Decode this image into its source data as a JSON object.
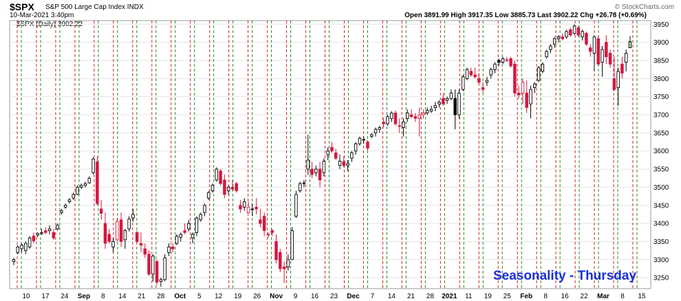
{
  "header": {
    "symbol": "$SPX",
    "description": "S&P 500 Large Cap Index INDX",
    "date": "10-Mar-2021 3:40pm",
    "quote": "Open 3891.99  High 3917.35  Low 3885.73  Last 3902.22  Chg +26.78 (+0.69%)",
    "legend": "$SPX (Daily) 3902.22",
    "brand": "© StockCharts.com"
  },
  "annotation": "Seasonality - Thursday",
  "colors": {
    "up": "#000000",
    "down": "#d6163f",
    "thursday_line": "#d11f1f",
    "week_line": "#1f8a1f",
    "annotation": "#1a32d6"
  },
  "chart_data": {
    "type": "candlestick",
    "ylim": [
      3220,
      3960
    ],
    "y_ticks": [
      3250,
      3300,
      3350,
      3400,
      3450,
      3500,
      3550,
      3600,
      3650,
      3700,
      3750,
      3800,
      3850,
      3900,
      3950
    ],
    "x_ticks": [
      "10",
      "17",
      "24",
      "Sep",
      "8",
      "14",
      "21",
      "28",
      "Oct",
      "5",
      "12",
      "19",
      "26",
      "Nov",
      "9",
      "16",
      "23",
      "Dec",
      "7",
      "14",
      "21",
      "28",
      "2021",
      "11",
      "19",
      "25",
      "Feb",
      "8",
      "16",
      "22",
      "Mar",
      "8",
      "15"
    ],
    "bars": [
      {
        "o": 3295,
        "h": 3305,
        "l": 3285,
        "c": 3300,
        "up": true
      },
      {
        "o": 3320,
        "h": 3340,
        "l": 3315,
        "c": 3335,
        "up": true
      },
      {
        "o": 3330,
        "h": 3345,
        "l": 3320,
        "c": 3340,
        "up": true
      },
      {
        "o": 3325,
        "h": 3350,
        "l": 3315,
        "c": 3345,
        "up": true
      },
      {
        "o": 3335,
        "h": 3365,
        "l": 3330,
        "c": 3360,
        "up": true
      },
      {
        "o": 3365,
        "h": 3375,
        "l": 3345,
        "c": 3352,
        "up": false
      },
      {
        "o": 3368,
        "h": 3375,
        "l": 3362,
        "c": 3372,
        "up": true
      },
      {
        "o": 3372,
        "h": 3385,
        "l": 3368,
        "c": 3375,
        "up": true
      },
      {
        "o": 3380,
        "h": 3390,
        "l": 3370,
        "c": 3375,
        "up": false
      },
      {
        "o": 3380,
        "h": 3395,
        "l": 3370,
        "c": 3385,
        "up": true
      },
      {
        "o": 3375,
        "h": 3385,
        "l": 3355,
        "c": 3360,
        "up": false
      },
      {
        "o": 3385,
        "h": 3400,
        "l": 3380,
        "c": 3395,
        "up": true
      },
      {
        "o": 3430,
        "h": 3440,
        "l": 3425,
        "c": 3435,
        "up": true
      },
      {
        "o": 3445,
        "h": 3455,
        "l": 3440,
        "c": 3450,
        "up": true
      },
      {
        "o": 3460,
        "h": 3470,
        "l": 3455,
        "c": 3465,
        "up": true
      },
      {
        "o": 3470,
        "h": 3485,
        "l": 3465,
        "c": 3480,
        "up": true
      },
      {
        "o": 3480,
        "h": 3505,
        "l": 3478,
        "c": 3500,
        "up": true
      },
      {
        "o": 3500,
        "h": 3510,
        "l": 3495,
        "c": 3505,
        "up": true
      },
      {
        "o": 3505,
        "h": 3515,
        "l": 3500,
        "c": 3510,
        "up": true
      },
      {
        "o": 3512,
        "h": 3530,
        "l": 3510,
        "c": 3525,
        "up": true
      },
      {
        "o": 3540,
        "h": 3582,
        "l": 3535,
        "c": 3578,
        "up": true
      },
      {
        "o": 3570,
        "h": 3585,
        "l": 3450,
        "c": 3455,
        "up": false
      },
      {
        "o": 3440,
        "h": 3465,
        "l": 3410,
        "c": 3428,
        "up": false
      },
      {
        "o": 3400,
        "h": 3430,
        "l": 3330,
        "c": 3345,
        "up": false
      },
      {
        "o": 3370,
        "h": 3385,
        "l": 3345,
        "c": 3350,
        "up": false
      },
      {
        "o": 3335,
        "h": 3360,
        "l": 3320,
        "c": 3350,
        "up": true
      },
      {
        "o": 3355,
        "h": 3415,
        "l": 3350,
        "c": 3405,
        "up": false
      },
      {
        "o": 3410,
        "h": 3430,
        "l": 3335,
        "c": 3350,
        "up": false
      },
      {
        "o": 3355,
        "h": 3385,
        "l": 3330,
        "c": 3380,
        "up": true
      },
      {
        "o": 3385,
        "h": 3420,
        "l": 3378,
        "c": 3412,
        "up": true
      },
      {
        "o": 3415,
        "h": 3440,
        "l": 3405,
        "c": 3425,
        "up": true
      },
      {
        "o": 3375,
        "h": 3380,
        "l": 3345,
        "c": 3350,
        "up": false
      },
      {
        "o": 3345,
        "h": 3375,
        "l": 3320,
        "c": 3340,
        "up": false
      },
      {
        "o": 3330,
        "h": 3345,
        "l": 3305,
        "c": 3315,
        "up": false
      },
      {
        "o": 3315,
        "h": 3325,
        "l": 3255,
        "c": 3260,
        "up": false
      },
      {
        "o": 3260,
        "h": 3315,
        "l": 3240,
        "c": 3310,
        "up": true
      },
      {
        "o": 3295,
        "h": 3300,
        "l": 3230,
        "c": 3238,
        "up": false
      },
      {
        "o": 3240,
        "h": 3250,
        "l": 3225,
        "c": 3245,
        "up": true
      },
      {
        "o": 3245,
        "h": 3315,
        "l": 3240,
        "c": 3305,
        "up": true
      },
      {
        "o": 3320,
        "h": 3345,
        "l": 3310,
        "c": 3335,
        "up": true
      },
      {
        "o": 3335,
        "h": 3345,
        "l": 3320,
        "c": 3330,
        "up": false
      },
      {
        "o": 3345,
        "h": 3370,
        "l": 3340,
        "c": 3365,
        "up": true
      },
      {
        "o": 3362,
        "h": 3375,
        "l": 3350,
        "c": 3370,
        "up": true
      },
      {
        "o": 3380,
        "h": 3400,
        "l": 3370,
        "c": 3375,
        "up": false
      },
      {
        "o": 3385,
        "h": 3410,
        "l": 3378,
        "c": 3400,
        "up": true
      },
      {
        "o": 3360,
        "h": 3375,
        "l": 3345,
        "c": 3370,
        "up": true
      },
      {
        "o": 3375,
        "h": 3420,
        "l": 3365,
        "c": 3415,
        "up": true
      },
      {
        "o": 3410,
        "h": 3430,
        "l": 3405,
        "c": 3425,
        "up": true
      },
      {
        "o": 3430,
        "h": 3455,
        "l": 3420,
        "c": 3450,
        "up": true
      },
      {
        "o": 3470,
        "h": 3490,
        "l": 3465,
        "c": 3485,
        "up": true
      },
      {
        "o": 3490,
        "h": 3510,
        "l": 3485,
        "c": 3505,
        "up": true
      },
      {
        "o": 3520,
        "h": 3555,
        "l": 3515,
        "c": 3550,
        "up": true
      },
      {
        "o": 3545,
        "h": 3550,
        "l": 3505,
        "c": 3510,
        "up": false
      },
      {
        "o": 3520,
        "h": 3535,
        "l": 3470,
        "c": 3480,
        "up": false
      },
      {
        "o": 3490,
        "h": 3505,
        "l": 3480,
        "c": 3500,
        "up": true
      },
      {
        "o": 3500,
        "h": 3520,
        "l": 3490,
        "c": 3495,
        "up": false
      },
      {
        "o": 3510,
        "h": 3515,
        "l": 3485,
        "c": 3490,
        "up": false
      },
      {
        "o": 3450,
        "h": 3465,
        "l": 3430,
        "c": 3440,
        "up": false
      },
      {
        "o": 3445,
        "h": 3470,
        "l": 3435,
        "c": 3460,
        "up": true
      },
      {
        "o": 3430,
        "h": 3460,
        "l": 3430,
        "c": 3445,
        "up": false
      },
      {
        "o": 3440,
        "h": 3455,
        "l": 3420,
        "c": 3440,
        "up": true
      },
      {
        "o": 3445,
        "h": 3470,
        "l": 3425,
        "c": 3440,
        "up": false
      },
      {
        "o": 3410,
        "h": 3440,
        "l": 3390,
        "c": 3400,
        "up": false
      },
      {
        "o": 3420,
        "h": 3430,
        "l": 3365,
        "c": 3380,
        "up": false
      },
      {
        "o": 3370,
        "h": 3375,
        "l": 3360,
        "c": 3368,
        "up": false
      },
      {
        "o": 3380,
        "h": 3385,
        "l": 3365,
        "c": 3375,
        "up": false
      },
      {
        "o": 3350,
        "h": 3370,
        "l": 3290,
        "c": 3300,
        "up": false
      },
      {
        "o": 3320,
        "h": 3330,
        "l": 3265,
        "c": 3275,
        "up": false
      },
      {
        "o": 3280,
        "h": 3295,
        "l": 3235,
        "c": 3275,
        "up": false
      },
      {
        "o": 3280,
        "h": 3315,
        "l": 3270,
        "c": 3300,
        "up": true
      },
      {
        "o": 3300,
        "h": 3390,
        "l": 3300,
        "c": 3380,
        "up": true
      },
      {
        "o": 3420,
        "h": 3490,
        "l": 3415,
        "c": 3480,
        "up": true
      },
      {
        "o": 3490,
        "h": 3515,
        "l": 3485,
        "c": 3510,
        "up": true
      },
      {
        "o": 3510,
        "h": 3520,
        "l": 3500,
        "c": 3512,
        "up": true
      },
      {
        "o": 3550,
        "h": 3645,
        "l": 3535,
        "c": 3575,
        "up": true
      },
      {
        "o": 3550,
        "h": 3570,
        "l": 3525,
        "c": 3535,
        "up": false
      },
      {
        "o": 3540,
        "h": 3560,
        "l": 3530,
        "c": 3550,
        "up": true
      },
      {
        "o": 3550,
        "h": 3570,
        "l": 3500,
        "c": 3520,
        "up": false
      },
      {
        "o": 3540,
        "h": 3580,
        "l": 3530,
        "c": 3572,
        "up": true
      },
      {
        "o": 3590,
        "h": 3610,
        "l": 3575,
        "c": 3600,
        "up": true
      },
      {
        "o": 3610,
        "h": 3625,
        "l": 3595,
        "c": 3600,
        "up": false
      },
      {
        "o": 3595,
        "h": 3605,
        "l": 3575,
        "c": 3580,
        "up": false
      },
      {
        "o": 3560,
        "h": 3590,
        "l": 3550,
        "c": 3572,
        "up": true
      },
      {
        "o": 3570,
        "h": 3585,
        "l": 3555,
        "c": 3560,
        "up": false
      },
      {
        "o": 3560,
        "h": 3575,
        "l": 3545,
        "c": 3565,
        "up": true
      },
      {
        "o": 3580,
        "h": 3600,
        "l": 3570,
        "c": 3595,
        "up": true
      },
      {
        "o": 3600,
        "h": 3625,
        "l": 3590,
        "c": 3620,
        "up": true
      },
      {
        "o": 3620,
        "h": 3640,
        "l": 3615,
        "c": 3635,
        "up": true
      },
      {
        "o": 3630,
        "h": 3640,
        "l": 3620,
        "c": 3632,
        "up": true
      },
      {
        "o": 3625,
        "h": 3630,
        "l": 3600,
        "c": 3608,
        "up": false
      },
      {
        "o": 3640,
        "h": 3650,
        "l": 3635,
        "c": 3645,
        "up": true
      },
      {
        "o": 3650,
        "h": 3665,
        "l": 3640,
        "c": 3660,
        "up": true
      },
      {
        "o": 3660,
        "h": 3670,
        "l": 3650,
        "c": 3665,
        "up": true
      },
      {
        "o": 3680,
        "h": 3690,
        "l": 3665,
        "c": 3675,
        "up": false
      },
      {
        "o": 3675,
        "h": 3700,
        "l": 3670,
        "c": 3695,
        "up": true
      },
      {
        "o": 3690,
        "h": 3710,
        "l": 3680,
        "c": 3705,
        "up": true
      },
      {
        "o": 3705,
        "h": 3712,
        "l": 3670,
        "c": 3675,
        "up": false
      },
      {
        "o": 3670,
        "h": 3690,
        "l": 3650,
        "c": 3668,
        "up": false
      },
      {
        "o": 3665,
        "h": 3690,
        "l": 3640,
        "c": 3680,
        "up": true
      },
      {
        "o": 3690,
        "h": 3715,
        "l": 3680,
        "c": 3705,
        "up": true
      },
      {
        "o": 3700,
        "h": 3715,
        "l": 3690,
        "c": 3695,
        "up": false
      },
      {
        "o": 3695,
        "h": 3705,
        "l": 3680,
        "c": 3690,
        "up": false
      },
      {
        "o": 3690,
        "h": 3720,
        "l": 3640,
        "c": 3700,
        "up": false
      },
      {
        "o": 3700,
        "h": 3715,
        "l": 3690,
        "c": 3705,
        "up": false
      },
      {
        "o": 3705,
        "h": 3720,
        "l": 3700,
        "c": 3712,
        "up": true
      },
      {
        "o": 3710,
        "h": 3725,
        "l": 3705,
        "c": 3715,
        "up": true
      },
      {
        "o": 3720,
        "h": 3735,
        "l": 3710,
        "c": 3725,
        "up": true
      },
      {
        "o": 3730,
        "h": 3740,
        "l": 3720,
        "c": 3735,
        "up": true
      },
      {
        "o": 3745,
        "h": 3760,
        "l": 3725,
        "c": 3730,
        "up": false
      },
      {
        "o": 3740,
        "h": 3750,
        "l": 3730,
        "c": 3745,
        "up": true
      },
      {
        "o": 3745,
        "h": 3770,
        "l": 3740,
        "c": 3760,
        "up": true
      },
      {
        "o": 3745,
        "h": 3770,
        "l": 3660,
        "c": 3700,
        "up": true
      },
      {
        "o": 3700,
        "h": 3770,
        "l": 3690,
        "c": 3760,
        "up": true
      },
      {
        "o": 3770,
        "h": 3810,
        "l": 3765,
        "c": 3805,
        "up": true
      },
      {
        "o": 3800,
        "h": 3830,
        "l": 3795,
        "c": 3825,
        "up": true
      },
      {
        "o": 3820,
        "h": 3830,
        "l": 3805,
        "c": 3810,
        "up": false
      },
      {
        "o": 3810,
        "h": 3830,
        "l": 3800,
        "c": 3805,
        "up": false
      },
      {
        "o": 3800,
        "h": 3815,
        "l": 3785,
        "c": 3790,
        "up": false
      },
      {
        "o": 3775,
        "h": 3790,
        "l": 3760,
        "c": 3770,
        "up": false
      },
      {
        "o": 3790,
        "h": 3805,
        "l": 3780,
        "c": 3795,
        "up": true
      },
      {
        "o": 3810,
        "h": 3830,
        "l": 3800,
        "c": 3825,
        "up": true
      },
      {
        "o": 3825,
        "h": 3845,
        "l": 3815,
        "c": 3840,
        "up": true
      },
      {
        "o": 3850,
        "h": 3855,
        "l": 3835,
        "c": 3845,
        "up": true
      },
      {
        "o": 3845,
        "h": 3860,
        "l": 3840,
        "c": 3855,
        "up": true
      },
      {
        "o": 3850,
        "h": 3860,
        "l": 3845,
        "c": 3852,
        "up": false
      },
      {
        "o": 3855,
        "h": 3860,
        "l": 3830,
        "c": 3835,
        "up": false
      },
      {
        "o": 3840,
        "h": 3850,
        "l": 3750,
        "c": 3760,
        "up": false
      },
      {
        "o": 3760,
        "h": 3780,
        "l": 3745,
        "c": 3755,
        "up": false
      },
      {
        "o": 3760,
        "h": 3800,
        "l": 3730,
        "c": 3790,
        "up": false
      },
      {
        "o": 3760,
        "h": 3795,
        "l": 3705,
        "c": 3720,
        "up": false
      },
      {
        "o": 3730,
        "h": 3780,
        "l": 3690,
        "c": 3770,
        "up": true
      },
      {
        "o": 3775,
        "h": 3790,
        "l": 3760,
        "c": 3785,
        "up": true
      },
      {
        "o": 3795,
        "h": 3835,
        "l": 3790,
        "c": 3830,
        "up": true
      },
      {
        "o": 3820,
        "h": 3845,
        "l": 3815,
        "c": 3840,
        "up": true
      },
      {
        "o": 3860,
        "h": 3880,
        "l": 3855,
        "c": 3875,
        "up": true
      },
      {
        "o": 3880,
        "h": 3895,
        "l": 3870,
        "c": 3890,
        "up": true
      },
      {
        "o": 3895,
        "h": 3915,
        "l": 3885,
        "c": 3910,
        "up": true
      },
      {
        "o": 3910,
        "h": 3920,
        "l": 3900,
        "c": 3915,
        "up": true
      },
      {
        "o": 3915,
        "h": 3925,
        "l": 3905,
        "c": 3910,
        "up": false
      },
      {
        "o": 3915,
        "h": 3935,
        "l": 3910,
        "c": 3930,
        "up": true
      },
      {
        "o": 3935,
        "h": 3940,
        "l": 3915,
        "c": 3920,
        "up": false
      },
      {
        "o": 3925,
        "h": 3950,
        "l": 3920,
        "c": 3945,
        "up": true
      },
      {
        "o": 3940,
        "h": 3945,
        "l": 3915,
        "c": 3920,
        "up": false
      },
      {
        "o": 3915,
        "h": 3935,
        "l": 3905,
        "c": 3930,
        "up": true
      },
      {
        "o": 3925,
        "h": 3930,
        "l": 3890,
        "c": 3895,
        "up": false
      },
      {
        "o": 3885,
        "h": 3895,
        "l": 3860,
        "c": 3875,
        "up": false
      },
      {
        "o": 3870,
        "h": 3920,
        "l": 3820,
        "c": 3915,
        "up": true
      },
      {
        "o": 3910,
        "h": 3920,
        "l": 3835,
        "c": 3840,
        "up": false
      },
      {
        "o": 3845,
        "h": 3890,
        "l": 3805,
        "c": 3880,
        "up": true
      },
      {
        "o": 3900,
        "h": 3920,
        "l": 3840,
        "c": 3860,
        "up": false
      },
      {
        "o": 3870,
        "h": 3880,
        "l": 3830,
        "c": 3840,
        "up": false
      },
      {
        "o": 3800,
        "h": 3860,
        "l": 3765,
        "c": 3770,
        "up": false
      },
      {
        "o": 3775,
        "h": 3830,
        "l": 3725,
        "c": 3820,
        "up": true
      },
      {
        "o": 3840,
        "h": 3860,
        "l": 3800,
        "c": 3815,
        "up": false
      },
      {
        "o": 3845,
        "h": 3880,
        "l": 3820,
        "c": 3870,
        "up": true
      },
      {
        "o": 3885,
        "h": 3917,
        "l": 3885,
        "c": 3902,
        "up": true
      }
    ],
    "grid": true
  }
}
